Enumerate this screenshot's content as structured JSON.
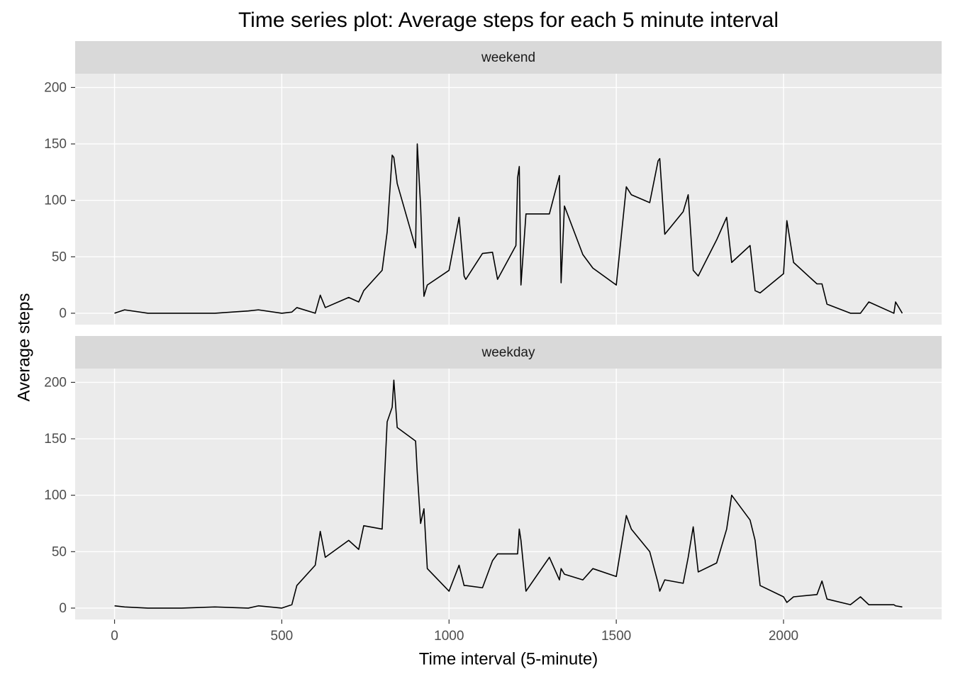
{
  "chart_data": {
    "type": "line",
    "title": "Time series plot: Average steps for each 5 minute interval",
    "x_label": "Time interval (5-minute)",
    "y_label": "Average steps",
    "x": [
      0,
      30,
      100,
      200,
      300,
      400,
      430,
      500,
      530,
      545,
      600,
      615,
      630,
      700,
      730,
      745,
      800,
      815,
      830,
      835,
      845,
      900,
      905,
      915,
      925,
      935,
      1000,
      1030,
      1045,
      1050,
      1100,
      1130,
      1145,
      1200,
      1205,
      1210,
      1215,
      1230,
      1300,
      1330,
      1335,
      1345,
      1400,
      1430,
      1500,
      1530,
      1545,
      1600,
      1625,
      1630,
      1645,
      1700,
      1715,
      1730,
      1745,
      1800,
      1830,
      1845,
      1900,
      1915,
      1930,
      2000,
      2010,
      2030,
      2100,
      2115,
      2130,
      2200,
      2230,
      2255,
      2330,
      2335,
      2355
    ],
    "series": [
      {
        "name": "weekend",
        "color": "#000000",
        "values": [
          0,
          3,
          0,
          0,
          0,
          2,
          3,
          0,
          1,
          5,
          0,
          16,
          5,
          14,
          10,
          20,
          38,
          72,
          140,
          138,
          115,
          58,
          150,
          95,
          15,
          25,
          38,
          85,
          33,
          30,
          53,
          54,
          30,
          60,
          120,
          130,
          25,
          88,
          88,
          122,
          27,
          95,
          52,
          40,
          25,
          112,
          105,
          98,
          135,
          137,
          70,
          90,
          105,
          38,
          33,
          65,
          85,
          45,
          60,
          20,
          18,
          35,
          82,
          45,
          26,
          26,
          8,
          0,
          0,
          10,
          0,
          10,
          0
        ]
      },
      {
        "name": "weekday",
        "color": "#000000",
        "values": [
          2,
          1,
          0,
          0,
          1,
          0,
          2,
          0,
          3,
          20,
          38,
          68,
          45,
          60,
          52,
          73,
          70,
          165,
          178,
          202,
          160,
          148,
          120,
          75,
          88,
          35,
          15,
          38,
          20,
          20,
          18,
          42,
          48,
          48,
          48,
          70,
          60,
          15,
          45,
          25,
          35,
          30,
          25,
          35,
          28,
          82,
          70,
          50,
          22,
          15,
          25,
          22,
          45,
          72,
          32,
          40,
          70,
          100,
          78,
          60,
          20,
          10,
          5,
          10,
          12,
          24,
          8,
          3,
          10,
          3,
          3,
          2,
          1
        ]
      }
    ],
    "xlim": [
      -117.75,
      2472.75
    ],
    "ylim": [
      -10.1,
      212.2
    ],
    "xticks": [
      0,
      500,
      1000,
      1500,
      2000
    ],
    "yticks": [
      0,
      50,
      100,
      150,
      200
    ],
    "grid": true
  }
}
